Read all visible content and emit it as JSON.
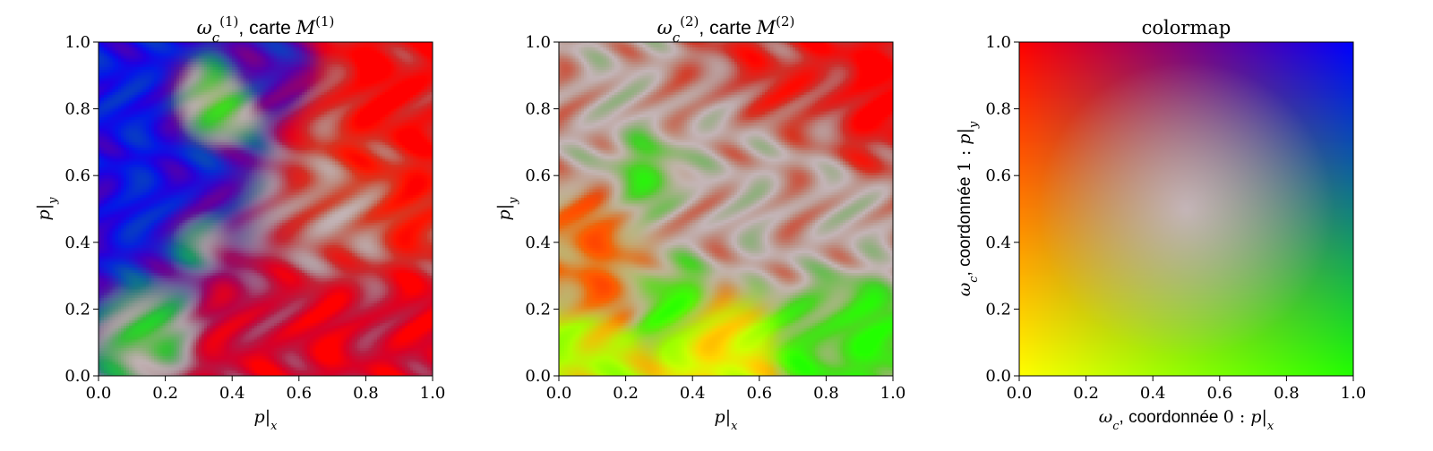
{
  "chart_data": [
    {
      "type": "heatmap",
      "title_parts": [
        {
          "text": "ω",
          "style": "italic"
        },
        {
          "text": "c",
          "style": "sub-italic"
        },
        {
          "text": "(1)",
          "style": "sup"
        },
        {
          "text": ", carte ",
          "style": "sans"
        },
        {
          "text": "M",
          "style": "italic"
        },
        {
          "text": "(1)",
          "style": "sup"
        }
      ],
      "xlabel_parts": [
        {
          "text": "p",
          "style": "italic"
        },
        {
          "text": "|",
          "style": "normal"
        },
        {
          "text": "x",
          "style": "sub-italic"
        }
      ],
      "ylabel_parts": [
        {
          "text": "p",
          "style": "italic"
        },
        {
          "text": "|",
          "style": "normal"
        },
        {
          "text": "y",
          "style": "sub-italic"
        }
      ],
      "xlim": [
        0.0,
        1.0
      ],
      "ylim": [
        0.0,
        1.0
      ],
      "xticks": [
        "0.0",
        "0.2",
        "0.4",
        "0.6",
        "0.8",
        "1.0"
      ],
      "yticks": [
        "0.0",
        "0.2",
        "0.4",
        "0.6",
        "0.8",
        "1.0"
      ],
      "grid": false,
      "blobs": [
        {
          "x": 0.55,
          "y": 0.15,
          "r": 0.5,
          "c0": 0.15,
          "c1": 1.0
        },
        {
          "x": 0.1,
          "y": 0.5,
          "r": 0.5,
          "c0": 0.95,
          "c1": 0.95
        },
        {
          "x": 0.95,
          "y": 0.75,
          "r": 0.35,
          "c0": 0.05,
          "c1": 0.95
        },
        {
          "x": 0.8,
          "y": 0.55,
          "r": 0.3,
          "c0": 0.15,
          "c1": 0.75
        },
        {
          "x": 0.65,
          "y": 0.45,
          "r": 0.25,
          "c0": 0.5,
          "c1": 0.5
        },
        {
          "x": 0.15,
          "y": 0.15,
          "r": 0.2,
          "c0": 0.85,
          "c1": 0.05
        },
        {
          "x": 0.3,
          "y": 0.4,
          "r": 0.12,
          "c0": 0.9,
          "c1": 0.05
        },
        {
          "x": 0.35,
          "y": 0.8,
          "r": 0.15,
          "c0": 0.6,
          "c1": 0.2
        },
        {
          "x": 0.5,
          "y": 0.92,
          "r": 0.15,
          "c0": 0.75,
          "c1": 0.95
        }
      ]
    },
    {
      "type": "heatmap",
      "title_parts": [
        {
          "text": "ω",
          "style": "italic"
        },
        {
          "text": "c",
          "style": "sub-italic"
        },
        {
          "text": "(2)",
          "style": "sup"
        },
        {
          "text": ", carte ",
          "style": "sans"
        },
        {
          "text": "M",
          "style": "italic"
        },
        {
          "text": "(2)",
          "style": "sup"
        }
      ],
      "xlabel_parts": [
        {
          "text": "p",
          "style": "italic"
        },
        {
          "text": "|",
          "style": "normal"
        },
        {
          "text": "x",
          "style": "sub-italic"
        }
      ],
      "ylabel_parts": [
        {
          "text": "p",
          "style": "italic"
        },
        {
          "text": "|",
          "style": "normal"
        },
        {
          "text": "y",
          "style": "sub-italic"
        }
      ],
      "xlim": [
        0.0,
        1.0
      ],
      "ylim": [
        0.0,
        1.0
      ],
      "xticks": [
        "0.0",
        "0.2",
        "0.4",
        "0.6",
        "0.8",
        "1.0"
      ],
      "yticks": [
        "0.0",
        "0.2",
        "0.4",
        "0.6",
        "0.8",
        "1.0"
      ],
      "grid": false,
      "blobs": [
        {
          "x": 0.55,
          "y": 0.55,
          "r": 0.45,
          "c0": 0.45,
          "c1": 0.55
        },
        {
          "x": 0.9,
          "y": 0.85,
          "r": 0.25,
          "c0": 0.05,
          "c1": 0.95
        },
        {
          "x": 0.6,
          "y": 0.9,
          "r": 0.2,
          "c0": 0.15,
          "c1": 0.85
        },
        {
          "x": 0.3,
          "y": 0.6,
          "r": 0.15,
          "c0": 0.85,
          "c1": 0.1
        },
        {
          "x": 0.15,
          "y": 0.35,
          "r": 0.2,
          "c0": 0.1,
          "c1": 0.55
        },
        {
          "x": 0.35,
          "y": 0.25,
          "r": 0.15,
          "c0": 0.85,
          "c1": 0.05
        },
        {
          "x": 0.5,
          "y": 0.1,
          "r": 0.2,
          "c0": 0.1,
          "c1": 0.05
        },
        {
          "x": 0.8,
          "y": 0.12,
          "r": 0.2,
          "c0": 0.85,
          "c1": 0.1
        },
        {
          "x": 0.1,
          "y": 0.05,
          "r": 0.15,
          "c0": 0.3,
          "c1": 0.05
        }
      ]
    },
    {
      "type": "heatmap",
      "title": "colormap",
      "xlabel_parts": [
        {
          "text": "ω",
          "style": "italic"
        },
        {
          "text": "c",
          "style": "sub-italic"
        },
        {
          "text": ", coordonnée ",
          "style": "sans"
        },
        {
          "text": "0 : ",
          "style": "normal"
        },
        {
          "text": "p",
          "style": "italic"
        },
        {
          "text": "|",
          "style": "normal"
        },
        {
          "text": "x",
          "style": "sub-italic"
        }
      ],
      "ylabel_parts": [
        {
          "text": "ω",
          "style": "italic"
        },
        {
          "text": "c",
          "style": "sub-italic"
        },
        {
          "text": ", coordonnée ",
          "style": "sans"
        },
        {
          "text": "1 : ",
          "style": "normal"
        },
        {
          "text": "p",
          "style": "italic"
        },
        {
          "text": "|",
          "style": "normal"
        },
        {
          "text": "y",
          "style": "sub-italic"
        }
      ],
      "xlim": [
        0.0,
        1.0
      ],
      "ylim": [
        0.0,
        1.0
      ],
      "xticks": [
        "0.0",
        "0.2",
        "0.4",
        "0.6",
        "0.8",
        "1.0"
      ],
      "yticks": [
        "0.0",
        "0.2",
        "0.4",
        "0.6",
        "0.8",
        "1.0"
      ],
      "grid": false,
      "corner_colors": {
        "bottom_left": "#ffff00",
        "bottom_right": "#22ff00",
        "top_left": "#ff0000",
        "top_right": "#0000ff",
        "center": "#d9c7e0"
      }
    }
  ]
}
